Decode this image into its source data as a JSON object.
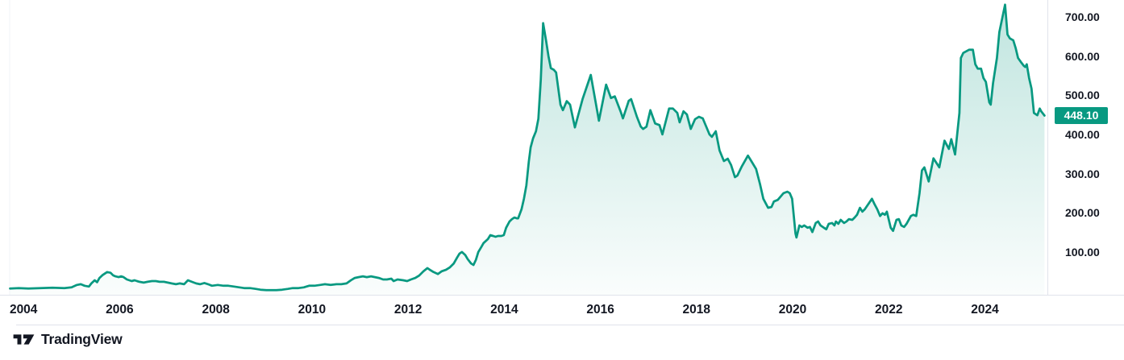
{
  "chart_data": {
    "type": "area",
    "title": "",
    "legend": "none",
    "grid": "off",
    "xlabel": "",
    "ylabel": "",
    "x_ticks": [
      "2004",
      "2006",
      "2008",
      "2010",
      "2012",
      "2014",
      "2016",
      "2018",
      "2020",
      "2022",
      "2024"
    ],
    "y_ticks": [
      "700.00",
      "600.00",
      "500.00",
      "400.00",
      "300.00",
      "200.00",
      "100.00"
    ],
    "x_range": [
      2003.51,
      2025.3
    ],
    "y_range": [
      -9,
      743
    ],
    "last_price": 448.1,
    "last_price_label": "448.10",
    "line_color": "#089981",
    "series": [
      {
        "name": "price",
        "points": [
          [
            2003.72,
            7
          ],
          [
            2003.9,
            8
          ],
          [
            2004.1,
            7
          ],
          [
            2004.35,
            8
          ],
          [
            2004.6,
            9
          ],
          [
            2004.85,
            8
          ],
          [
            2005.0,
            10
          ],
          [
            2005.11,
            16
          ],
          [
            2005.19,
            18
          ],
          [
            2005.27,
            14
          ],
          [
            2005.36,
            12
          ],
          [
            2005.41,
            20
          ],
          [
            2005.48,
            28
          ],
          [
            2005.53,
            23
          ],
          [
            2005.58,
            34
          ],
          [
            2005.64,
            41
          ],
          [
            2005.69,
            45
          ],
          [
            2005.74,
            49
          ],
          [
            2005.81,
            47
          ],
          [
            2005.86,
            41
          ],
          [
            2005.91,
            38
          ],
          [
            2005.98,
            36
          ],
          [
            2006.03,
            38
          ],
          [
            2006.08,
            36
          ],
          [
            2006.15,
            30
          ],
          [
            2006.2,
            28
          ],
          [
            2006.25,
            26
          ],
          [
            2006.31,
            28
          ],
          [
            2006.36,
            26
          ],
          [
            2006.41,
            24
          ],
          [
            2006.5,
            22
          ],
          [
            2006.58,
            24
          ],
          [
            2006.67,
            26
          ],
          [
            2006.75,
            26
          ],
          [
            2006.83,
            24
          ],
          [
            2006.92,
            24
          ],
          [
            2007.0,
            22
          ],
          [
            2007.08,
            20
          ],
          [
            2007.17,
            18
          ],
          [
            2007.25,
            20
          ],
          [
            2007.34,
            18
          ],
          [
            2007.42,
            28
          ],
          [
            2007.5,
            24
          ],
          [
            2007.59,
            20
          ],
          [
            2007.67,
            18
          ],
          [
            2007.76,
            21
          ],
          [
            2007.84,
            18
          ],
          [
            2007.92,
            14
          ],
          [
            2008.04,
            16
          ],
          [
            2008.16,
            14
          ],
          [
            2008.26,
            14
          ],
          [
            2008.38,
            12
          ],
          [
            2008.49,
            10
          ],
          [
            2008.59,
            8
          ],
          [
            2008.71,
            8
          ],
          [
            2008.83,
            6
          ],
          [
            2008.93,
            4
          ],
          [
            2009.05,
            3
          ],
          [
            2009.16,
            3
          ],
          [
            2009.26,
            3
          ],
          [
            2009.38,
            4
          ],
          [
            2009.5,
            6
          ],
          [
            2009.6,
            8
          ],
          [
            2009.72,
            8
          ],
          [
            2009.83,
            10
          ],
          [
            2009.94,
            14
          ],
          [
            2010.05,
            14
          ],
          [
            2010.17,
            16
          ],
          [
            2010.27,
            18
          ],
          [
            2010.39,
            16
          ],
          [
            2010.51,
            18
          ],
          [
            2010.61,
            18
          ],
          [
            2010.72,
            20
          ],
          [
            2010.81,
            28
          ],
          [
            2010.89,
            34
          ],
          [
            2010.97,
            36
          ],
          [
            2011.06,
            38
          ],
          [
            2011.14,
            36
          ],
          [
            2011.23,
            38
          ],
          [
            2011.31,
            36
          ],
          [
            2011.39,
            34
          ],
          [
            2011.48,
            30
          ],
          [
            2011.56,
            30
          ],
          [
            2011.65,
            32
          ],
          [
            2011.7,
            26
          ],
          [
            2011.78,
            30
          ],
          [
            2011.9,
            28
          ],
          [
            2011.98,
            26
          ],
          [
            2012.06,
            30
          ],
          [
            2012.15,
            34
          ],
          [
            2012.23,
            40
          ],
          [
            2012.32,
            51
          ],
          [
            2012.4,
            59
          ],
          [
            2012.45,
            55
          ],
          [
            2012.53,
            49
          ],
          [
            2012.62,
            44
          ],
          [
            2012.7,
            51
          ],
          [
            2012.79,
            55
          ],
          [
            2012.87,
            61
          ],
          [
            2012.95,
            71
          ],
          [
            2013.02,
            86
          ],
          [
            2013.07,
            96
          ],
          [
            2013.12,
            100
          ],
          [
            2013.19,
            92
          ],
          [
            2013.24,
            82
          ],
          [
            2013.31,
            71
          ],
          [
            2013.36,
            67
          ],
          [
            2013.41,
            80
          ],
          [
            2013.46,
            100
          ],
          [
            2013.52,
            112
          ],
          [
            2013.57,
            123
          ],
          [
            2013.66,
            133
          ],
          [
            2013.71,
            143
          ],
          [
            2013.77,
            141
          ],
          [
            2013.82,
            139
          ],
          [
            2013.87,
            141
          ],
          [
            2013.94,
            141
          ],
          [
            2013.99,
            143
          ],
          [
            2014.04,
            162
          ],
          [
            2014.11,
            178
          ],
          [
            2014.16,
            184
          ],
          [
            2014.21,
            188
          ],
          [
            2014.26,
            186
          ],
          [
            2014.29,
            186
          ],
          [
            2014.36,
            209
          ],
          [
            2014.41,
            236
          ],
          [
            2014.46,
            270
          ],
          [
            2014.51,
            330
          ],
          [
            2014.55,
            367
          ],
          [
            2014.6,
            390
          ],
          [
            2014.66,
            408
          ],
          [
            2014.71,
            440
          ],
          [
            2014.76,
            540
          ],
          [
            2014.81,
            684
          ],
          [
            2014.87,
            640
          ],
          [
            2014.92,
            600
          ],
          [
            2014.97,
            569
          ],
          [
            2015.03,
            565
          ],
          [
            2015.08,
            558
          ],
          [
            2015.17,
            476
          ],
          [
            2015.22,
            462
          ],
          [
            2015.3,
            485
          ],
          [
            2015.37,
            476
          ],
          [
            2015.47,
            418
          ],
          [
            2015.63,
            490
          ],
          [
            2015.8,
            552
          ],
          [
            2015.97,
            435
          ],
          [
            2016.12,
            527
          ],
          [
            2016.15,
            517
          ],
          [
            2016.22,
            493
          ],
          [
            2016.3,
            497
          ],
          [
            2016.42,
            459
          ],
          [
            2016.47,
            441
          ],
          [
            2016.59,
            486
          ],
          [
            2016.64,
            490
          ],
          [
            2016.76,
            445
          ],
          [
            2016.84,
            420
          ],
          [
            2016.89,
            414
          ],
          [
            2016.96,
            420
          ],
          [
            2017.04,
            462
          ],
          [
            2017.14,
            428
          ],
          [
            2017.23,
            424
          ],
          [
            2017.29,
            400
          ],
          [
            2017.43,
            466
          ],
          [
            2017.51,
            466
          ],
          [
            2017.6,
            455
          ],
          [
            2017.65,
            431
          ],
          [
            2017.73,
            459
          ],
          [
            2017.8,
            451
          ],
          [
            2017.88,
            414
          ],
          [
            2017.97,
            439
          ],
          [
            2018.05,
            445
          ],
          [
            2018.13,
            441
          ],
          [
            2018.27,
            400
          ],
          [
            2018.32,
            394
          ],
          [
            2018.4,
            408
          ],
          [
            2018.48,
            359
          ],
          [
            2018.57,
            332
          ],
          [
            2018.65,
            338
          ],
          [
            2018.72,
            322
          ],
          [
            2018.8,
            291
          ],
          [
            2018.85,
            295
          ],
          [
            2018.94,
            318
          ],
          [
            2019.07,
            346
          ],
          [
            2019.14,
            332
          ],
          [
            2019.24,
            312
          ],
          [
            2019.32,
            274
          ],
          [
            2019.39,
            236
          ],
          [
            2019.49,
            213
          ],
          [
            2019.56,
            215
          ],
          [
            2019.61,
            229
          ],
          [
            2019.69,
            233
          ],
          [
            2019.81,
            250
          ],
          [
            2019.89,
            254
          ],
          [
            2019.94,
            250
          ],
          [
            2019.99,
            236
          ],
          [
            2020.06,
            147
          ],
          [
            2020.08,
            137
          ],
          [
            2020.14,
            168
          ],
          [
            2020.19,
            164
          ],
          [
            2020.24,
            168
          ],
          [
            2020.31,
            162
          ],
          [
            2020.36,
            164
          ],
          [
            2020.41,
            151
          ],
          [
            2020.48,
            174
          ],
          [
            2020.53,
            178
          ],
          [
            2020.58,
            168
          ],
          [
            2020.65,
            162
          ],
          [
            2020.7,
            158
          ],
          [
            2020.75,
            172
          ],
          [
            2020.82,
            174
          ],
          [
            2020.87,
            168
          ],
          [
            2020.9,
            178
          ],
          [
            2020.95,
            172
          ],
          [
            2021.0,
            182
          ],
          [
            2021.07,
            174
          ],
          [
            2021.12,
            178
          ],
          [
            2021.17,
            184
          ],
          [
            2021.24,
            182
          ],
          [
            2021.29,
            188
          ],
          [
            2021.34,
            195
          ],
          [
            2021.4,
            213
          ],
          [
            2021.45,
            203
          ],
          [
            2021.5,
            209
          ],
          [
            2021.65,
            236
          ],
          [
            2021.7,
            223
          ],
          [
            2021.76,
            209
          ],
          [
            2021.82,
            192
          ],
          [
            2021.87,
            199
          ],
          [
            2021.92,
            195
          ],
          [
            2021.96,
            203
          ],
          [
            2022.04,
            162
          ],
          [
            2022.09,
            154
          ],
          [
            2022.16,
            182
          ],
          [
            2022.21,
            184
          ],
          [
            2022.26,
            168
          ],
          [
            2022.32,
            164
          ],
          [
            2022.37,
            172
          ],
          [
            2022.46,
            192
          ],
          [
            2022.51,
            195
          ],
          [
            2022.57,
            192
          ],
          [
            2022.64,
            250
          ],
          [
            2022.69,
            308
          ],
          [
            2022.74,
            316
          ],
          [
            2022.83,
            280
          ],
          [
            2022.93,
            339
          ],
          [
            2023.05,
            316
          ],
          [
            2023.16,
            384
          ],
          [
            2023.25,
            363
          ],
          [
            2023.3,
            388
          ],
          [
            2023.38,
            349
          ],
          [
            2023.47,
            455
          ],
          [
            2023.5,
            595
          ],
          [
            2023.55,
            608
          ],
          [
            2023.67,
            616
          ],
          [
            2023.75,
            616
          ],
          [
            2023.8,
            579
          ],
          [
            2023.85,
            568
          ],
          [
            2023.92,
            568
          ],
          [
            2023.97,
            544
          ],
          [
            2024.02,
            534
          ],
          [
            2024.09,
            482
          ],
          [
            2024.12,
            476
          ],
          [
            2024.17,
            531
          ],
          [
            2024.25,
            595
          ],
          [
            2024.3,
            661
          ],
          [
            2024.42,
            731
          ],
          [
            2024.47,
            655
          ],
          [
            2024.52,
            645
          ],
          [
            2024.59,
            640
          ],
          [
            2024.64,
            620
          ],
          [
            2024.69,
            595
          ],
          [
            2024.76,
            583
          ],
          [
            2024.81,
            575
          ],
          [
            2024.84,
            572
          ],
          [
            2024.87,
            579
          ],
          [
            2024.92,
            544
          ],
          [
            2024.97,
            517
          ],
          [
            2025.02,
            455
          ],
          [
            2025.09,
            449
          ],
          [
            2025.14,
            466
          ],
          [
            2025.17,
            459
          ],
          [
            2025.24,
            448.1
          ]
        ]
      }
    ]
  },
  "footer": {
    "brand": "TradingView"
  },
  "colors": {
    "accent": "#089981",
    "fill_top": "rgba(8,153,129,0.26)",
    "fill_bottom": "rgba(8,153,129,0.02)",
    "axis_text": "#131722",
    "border": "#e0e3eb",
    "badge_bg": "#089981",
    "badge_text": "#ffffff"
  }
}
